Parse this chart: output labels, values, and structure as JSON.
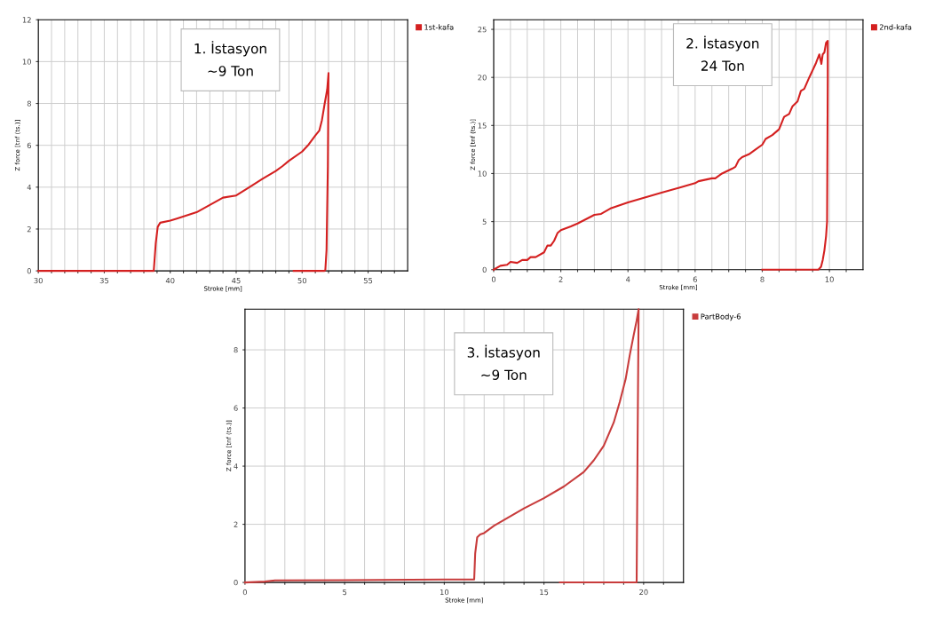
{
  "chart_data": [
    {
      "type": "line",
      "xlabel": "Stroke [mm]",
      "ylabel": "Z force [tnf (ts.)]",
      "annotations": [
        "1. İstasyon\n~9 Ton"
      ],
      "xlim": [
        30,
        58
      ],
      "ylim": [
        0,
        12
      ],
      "xticks": [
        30,
        {
          "value": 31,
          "label": null
        },
        {
          "value": 32,
          "label": null
        },
        {
          "value": 33,
          "label": null
        },
        {
          "value": 34,
          "label": null
        },
        35,
        {
          "value": 36,
          "label": null
        },
        {
          "value": 37,
          "label": null
        },
        {
          "value": 38,
          "label": null
        },
        {
          "value": 39,
          "label": null
        },
        40,
        {
          "value": 41,
          "label": null
        },
        {
          "value": 42,
          "label": null
        },
        {
          "value": 43,
          "label": null
        },
        {
          "value": 44,
          "label": null
        },
        45,
        {
          "value": 46,
          "label": null
        },
        {
          "value": 47,
          "label": null
        },
        {
          "value": 48,
          "label": null
        },
        {
          "value": 49,
          "label": null
        },
        50,
        {
          "value": 51,
          "label": null
        },
        {
          "value": 52,
          "label": null
        },
        {
          "value": 53,
          "label": null
        },
        {
          "value": 54,
          "label": null
        },
        55,
        {
          "value": 56,
          "label": null
        },
        {
          "value": 57,
          "label": null
        }
      ],
      "yticks": [
        0,
        2,
        4,
        6,
        8,
        10,
        12
      ],
      "grid": true,
      "legend": "top right",
      "series": [
        {
          "name": "1st-kafa",
          "color": "#d42020",
          "x": [
            30,
            38.75,
            38.9,
            39.05,
            39.24,
            40.0,
            40.5,
            42.0,
            44.0,
            45.0,
            46.0,
            47.0,
            48.0,
            48.5,
            49.0,
            50.0,
            50.5,
            51.0,
            51.3,
            51.5,
            51.7,
            51.9,
            52.0,
            51.95,
            51.85,
            51.76,
            51.7,
            49.36
          ],
          "values": [
            0,
            0,
            1.3,
            2.1,
            2.3,
            2.4,
            2.5,
            2.8,
            3.5,
            3.6,
            4.0,
            4.4,
            4.77,
            5.0,
            5.26,
            5.7,
            6.04,
            6.47,
            6.7,
            7.2,
            7.96,
            8.67,
            9.45,
            5.0,
            1.0,
            0.05,
            0,
            0
          ]
        }
      ]
    },
    {
      "type": "line",
      "xlabel": "Stroke [mm]",
      "ylabel": "Z force [tnf (ts.)]",
      "annotations": [
        "2. İstasyon\n24 Ton"
      ],
      "xlim": [
        0,
        11
      ],
      "ylim": [
        0,
        26
      ],
      "xticks": [
        0,
        {
          "value": 0.5,
          "label": null
        },
        {
          "value": 1,
          "label": null
        },
        {
          "value": 1.5,
          "label": null
        },
        2,
        {
          "value": 2.5,
          "label": null
        },
        {
          "value": 3,
          "label": null
        },
        {
          "value": 3.5,
          "label": null
        },
        4,
        {
          "value": 4.5,
          "label": null
        },
        {
          "value": 5,
          "label": null
        },
        {
          "value": 5.5,
          "label": null
        },
        6,
        {
          "value": 6.5,
          "label": null
        },
        {
          "value": 7,
          "label": null
        },
        {
          "value": 7.5,
          "label": null
        },
        8,
        {
          "value": 8.5,
          "label": null
        },
        {
          "value": 9,
          "label": null
        },
        {
          "value": 9.5,
          "label": null
        },
        10,
        {
          "value": 10.5,
          "label": null
        }
      ],
      "yticks": [
        0,
        5,
        10,
        15,
        20,
        25
      ],
      "grid": true,
      "legend": "top right",
      "series": [
        {
          "name": "2nd-kafa",
          "color": "#d42020",
          "x": [
            0,
            0.2,
            0.4,
            0.5,
            0.7,
            0.85,
            1.0,
            1.1,
            1.25,
            1.5,
            1.6,
            1.7,
            1.8,
            1.9,
            2.0,
            2.3,
            2.5,
            3.0,
            3.2,
            3.5,
            4.0,
            4.5,
            5.0,
            5.5,
            6.0,
            6.1,
            6.5,
            6.6,
            6.8,
            7.1,
            7.2,
            7.3,
            7.4,
            7.6,
            7.8,
            8.0,
            8.1,
            8.3,
            8.5,
            8.65,
            8.8,
            8.9,
            9.05,
            9.15,
            9.25,
            9.4,
            9.6,
            9.7,
            9.76,
            9.8,
            9.85,
            9.9,
            9.95,
            9.95,
            9.93,
            9.9,
            9.85,
            9.8,
            9.75,
            9.67,
            8.0
          ],
          "values": [
            0,
            0.4,
            0.5,
            0.8,
            0.7,
            1.0,
            1.0,
            1.3,
            1.3,
            1.8,
            2.5,
            2.5,
            3.0,
            3.8,
            4.1,
            4.5,
            4.8,
            5.7,
            5.8,
            6.4,
            7.0,
            7.5,
            8.0,
            8.5,
            9.0,
            9.2,
            9.5,
            9.5,
            10.0,
            10.5,
            10.7,
            11.4,
            11.7,
            12.0,
            12.5,
            13.0,
            13.6,
            14.0,
            14.6,
            15.9,
            16.2,
            17.0,
            17.5,
            18.6,
            18.8,
            20.0,
            21.5,
            22.4,
            21.4,
            22.4,
            22.6,
            23.6,
            23.8,
            20.0,
            5.0,
            3.5,
            2.0,
            1.0,
            0.3,
            0,
            0
          ]
        }
      ]
    },
    {
      "type": "line",
      "xlabel": "Stroke [mm]",
      "ylabel": "Z force [tnf (ts.)]",
      "annotations": [
        "3. İstasyon\n~9 Ton"
      ],
      "xlim": [
        0,
        22
      ],
      "ylim": [
        0,
        9.4
      ],
      "xticks": [
        0,
        {
          "value": 1,
          "label": null
        },
        {
          "value": 2,
          "label": null
        },
        {
          "value": 3,
          "label": null
        },
        {
          "value": 4,
          "label": null
        },
        5,
        {
          "value": 6,
          "label": null
        },
        {
          "value": 7,
          "label": null
        },
        {
          "value": 8,
          "label": null
        },
        {
          "value": 9,
          "label": null
        },
        10,
        {
          "value": 11,
          "label": null
        },
        {
          "value": 12,
          "label": null
        },
        {
          "value": 13,
          "label": null
        },
        {
          "value": 14,
          "label": null
        },
        15,
        {
          "value": 16,
          "label": null
        },
        {
          "value": 17,
          "label": null
        },
        {
          "value": 18,
          "label": null
        },
        {
          "value": 19,
          "label": null
        },
        20,
        {
          "value": 21,
          "label": null
        }
      ],
      "yticks": [
        0,
        2,
        4,
        6,
        8
      ],
      "grid": true,
      "legend": "top right",
      "series": [
        {
          "name": "PartBody-6",
          "color": "#c83c3c",
          "x": [
            0,
            1,
            1.5,
            5,
            10,
            11.5,
            11.55,
            11.65,
            11.8,
            12.0,
            12.5,
            13,
            14,
            15,
            16,
            17,
            17.5,
            18,
            18.5,
            18.8,
            19.1,
            19.3,
            19.5,
            19.65,
            19.75,
            19.7,
            19.65,
            15.8
          ],
          "values": [
            0,
            0.03,
            0.07,
            0.08,
            0.1,
            0.1,
            1.0,
            1.55,
            1.65,
            1.7,
            1.95,
            2.15,
            2.55,
            2.9,
            3.3,
            3.8,
            4.2,
            4.7,
            5.5,
            6.2,
            7.0,
            7.8,
            8.5,
            9.0,
            9.4,
            5.0,
            0,
            0
          ]
        }
      ]
    }
  ]
}
